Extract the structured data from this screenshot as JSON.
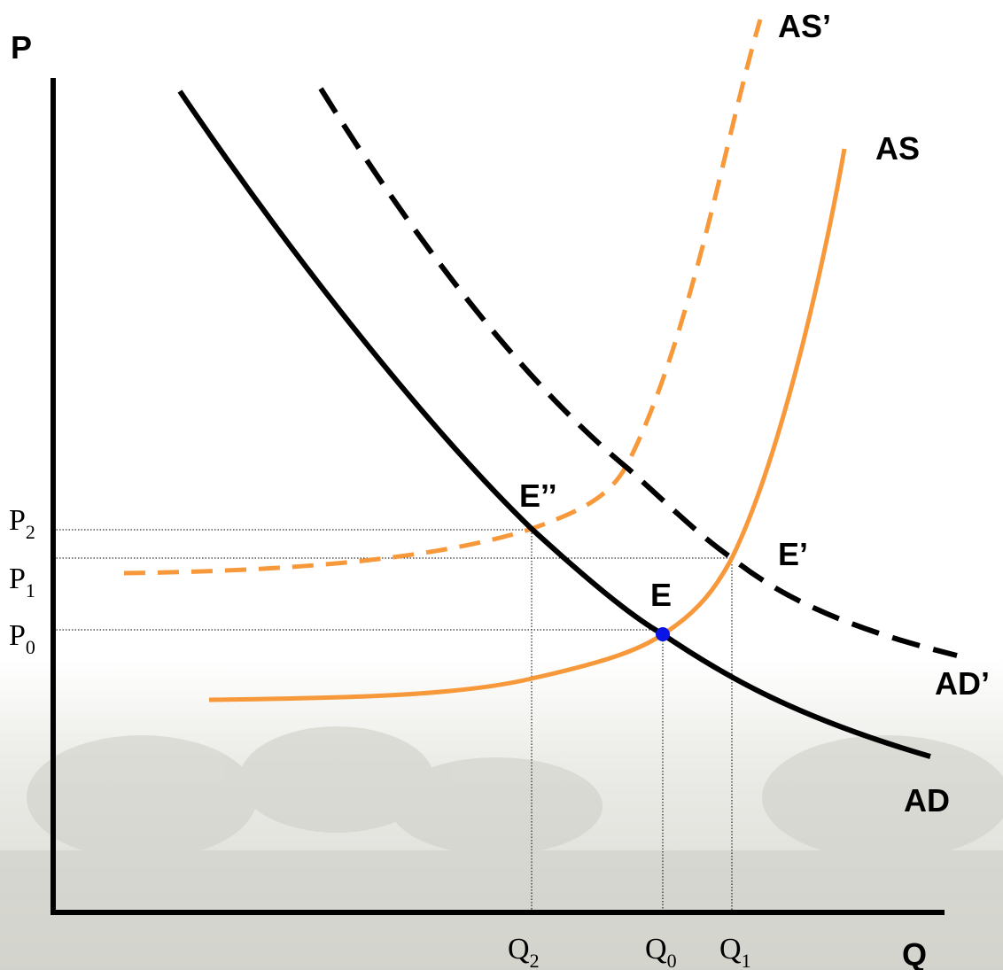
{
  "axes": {
    "y_label": "P",
    "x_label": "Q"
  },
  "curves": [
    {
      "label": "AS’"
    },
    {
      "label": "AS"
    },
    {
      "label": "AD’"
    },
    {
      "label": "AD"
    }
  ],
  "points": [
    {
      "label": "E’’"
    },
    {
      "label": "E’"
    },
    {
      "label": "E"
    }
  ],
  "price_levels": [
    {
      "base": "P",
      "sub": "2"
    },
    {
      "base": "P",
      "sub": "1"
    },
    {
      "base": "P",
      "sub": "0"
    }
  ],
  "quantity_levels": [
    {
      "base": "Q",
      "sub": "2"
    },
    {
      "base": "Q",
      "sub": "0"
    },
    {
      "base": "Q",
      "sub": "1"
    }
  ]
}
